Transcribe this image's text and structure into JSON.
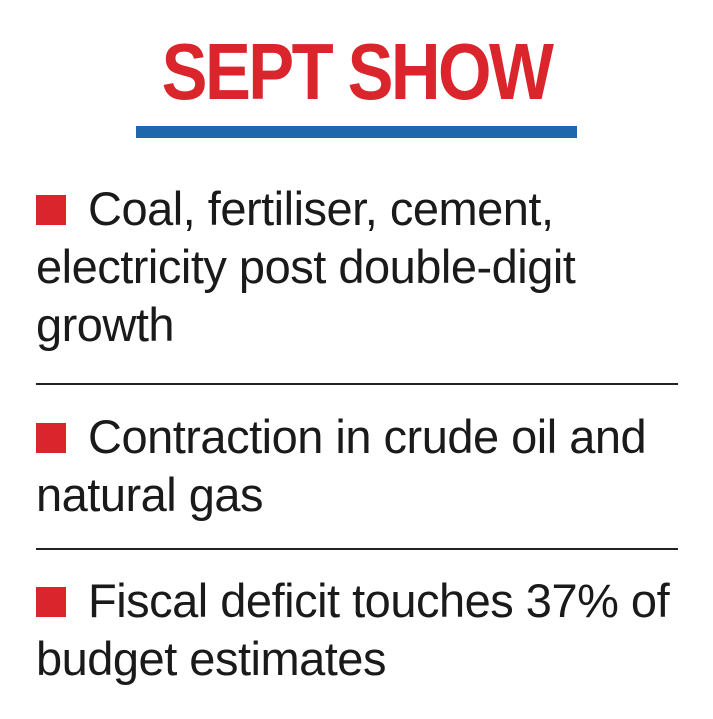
{
  "headline": {
    "title": "SEPT SHOW",
    "accent_color": "#d9252b",
    "rule_color": "#1f67ad"
  },
  "bullets": [
    {
      "text": "Coal, fertiliser, cement, electricity post double-digit growth"
    },
    {
      "text": "Contraction in crude oil and natural gas"
    },
    {
      "text": "Fiscal deficit touches 37% of budget estimates"
    }
  ],
  "bullet_marker": {
    "icon": "red-square-icon",
    "color": "#d9252b"
  }
}
